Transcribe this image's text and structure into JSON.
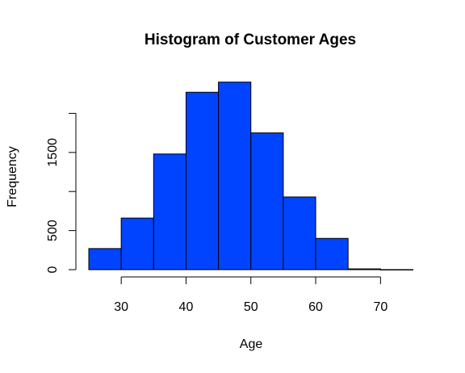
{
  "chart_data": {
    "type": "bar",
    "title": "Histogram of Customer Ages",
    "xlabel": "Age",
    "ylabel": "Frequency",
    "bin_edges": [
      25,
      30,
      35,
      40,
      45,
      50,
      55,
      60,
      65,
      70,
      75
    ],
    "values": [
      270,
      660,
      1480,
      2270,
      2400,
      1750,
      930,
      400,
      10,
      1
    ],
    "xlim": [
      25,
      75
    ],
    "ylim": [
      0,
      2400
    ],
    "x_ticks": [
      30,
      40,
      50,
      60,
      70
    ],
    "y_ticks": [
      0,
      500,
      1000,
      1500,
      2000
    ],
    "y_tick_labels": [
      "0",
      "500",
      "",
      "1500",
      ""
    ],
    "bar_color": "#0044ff",
    "grid": false
  }
}
